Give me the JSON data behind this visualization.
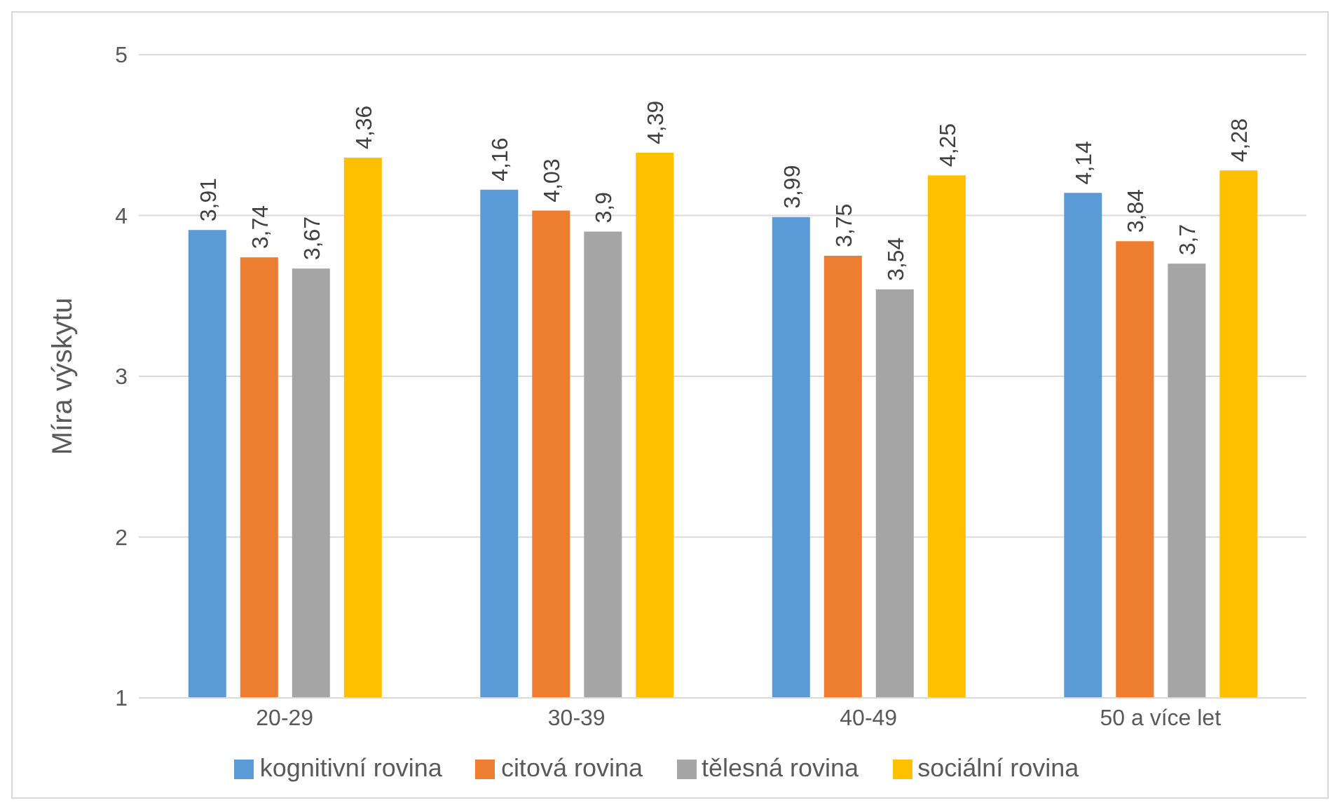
{
  "chart_data": {
    "type": "bar",
    "ylabel": "Míra výskytu",
    "categories": [
      "20-29",
      "30-39",
      "40-49",
      "50 a více let"
    ],
    "series": [
      {
        "name": "kognitivní rovina",
        "color": "#5b9bd5",
        "values": [
          3.91,
          4.16,
          3.99,
          4.14
        ],
        "value_labels": [
          "3,91",
          "4,16",
          "3,99",
          "4,14"
        ]
      },
      {
        "name": "citová rovina",
        "color": "#ed7d31",
        "values": [
          3.74,
          4.03,
          3.75,
          3.84
        ],
        "value_labels": [
          "3,74",
          "4,03",
          "3,75",
          "3,84"
        ]
      },
      {
        "name": "tělesná rovina",
        "color": "#a5a5a5",
        "values": [
          3.67,
          3.9,
          3.54,
          3.7
        ],
        "value_labels": [
          "3,67",
          "3,9",
          "3,54",
          "3,7"
        ]
      },
      {
        "name": "sociální rovina",
        "color": "#ffc000",
        "values": [
          4.36,
          4.39,
          4.25,
          4.28
        ],
        "value_labels": [
          "4,36",
          "4,39",
          "4,25",
          "4,28"
        ]
      }
    ],
    "ylim": [
      1,
      5
    ],
    "yticks": [
      1,
      2,
      3,
      4,
      5
    ],
    "grid": "y",
    "legend": "bottom"
  }
}
